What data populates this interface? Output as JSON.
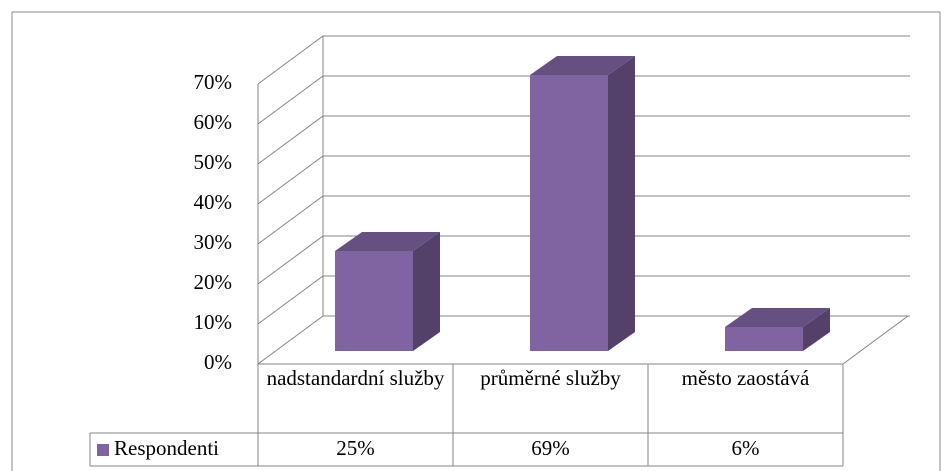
{
  "chart_data": {
    "type": "bar3d",
    "categories": [
      "nadstandardní služby",
      "průměrné služby",
      "město zaostává"
    ],
    "series": [
      {
        "name": "Respondenti",
        "color": "#8064a2",
        "values": [
          25,
          69,
          6
        ],
        "value_labels": [
          "25%",
          "69%",
          "6%"
        ]
      }
    ],
    "ylim": [
      0,
      70
    ],
    "yticks": [
      {
        "value": 0,
        "label": "0%"
      },
      {
        "value": 10,
        "label": "10%"
      },
      {
        "value": 20,
        "label": "20%"
      },
      {
        "value": 30,
        "label": "30%"
      },
      {
        "value": 40,
        "label": "40%"
      },
      {
        "value": 50,
        "label": "50%"
      },
      {
        "value": 60,
        "label": "60%"
      },
      {
        "value": 70,
        "label": "70%"
      }
    ],
    "grid": true,
    "legend": "table"
  }
}
